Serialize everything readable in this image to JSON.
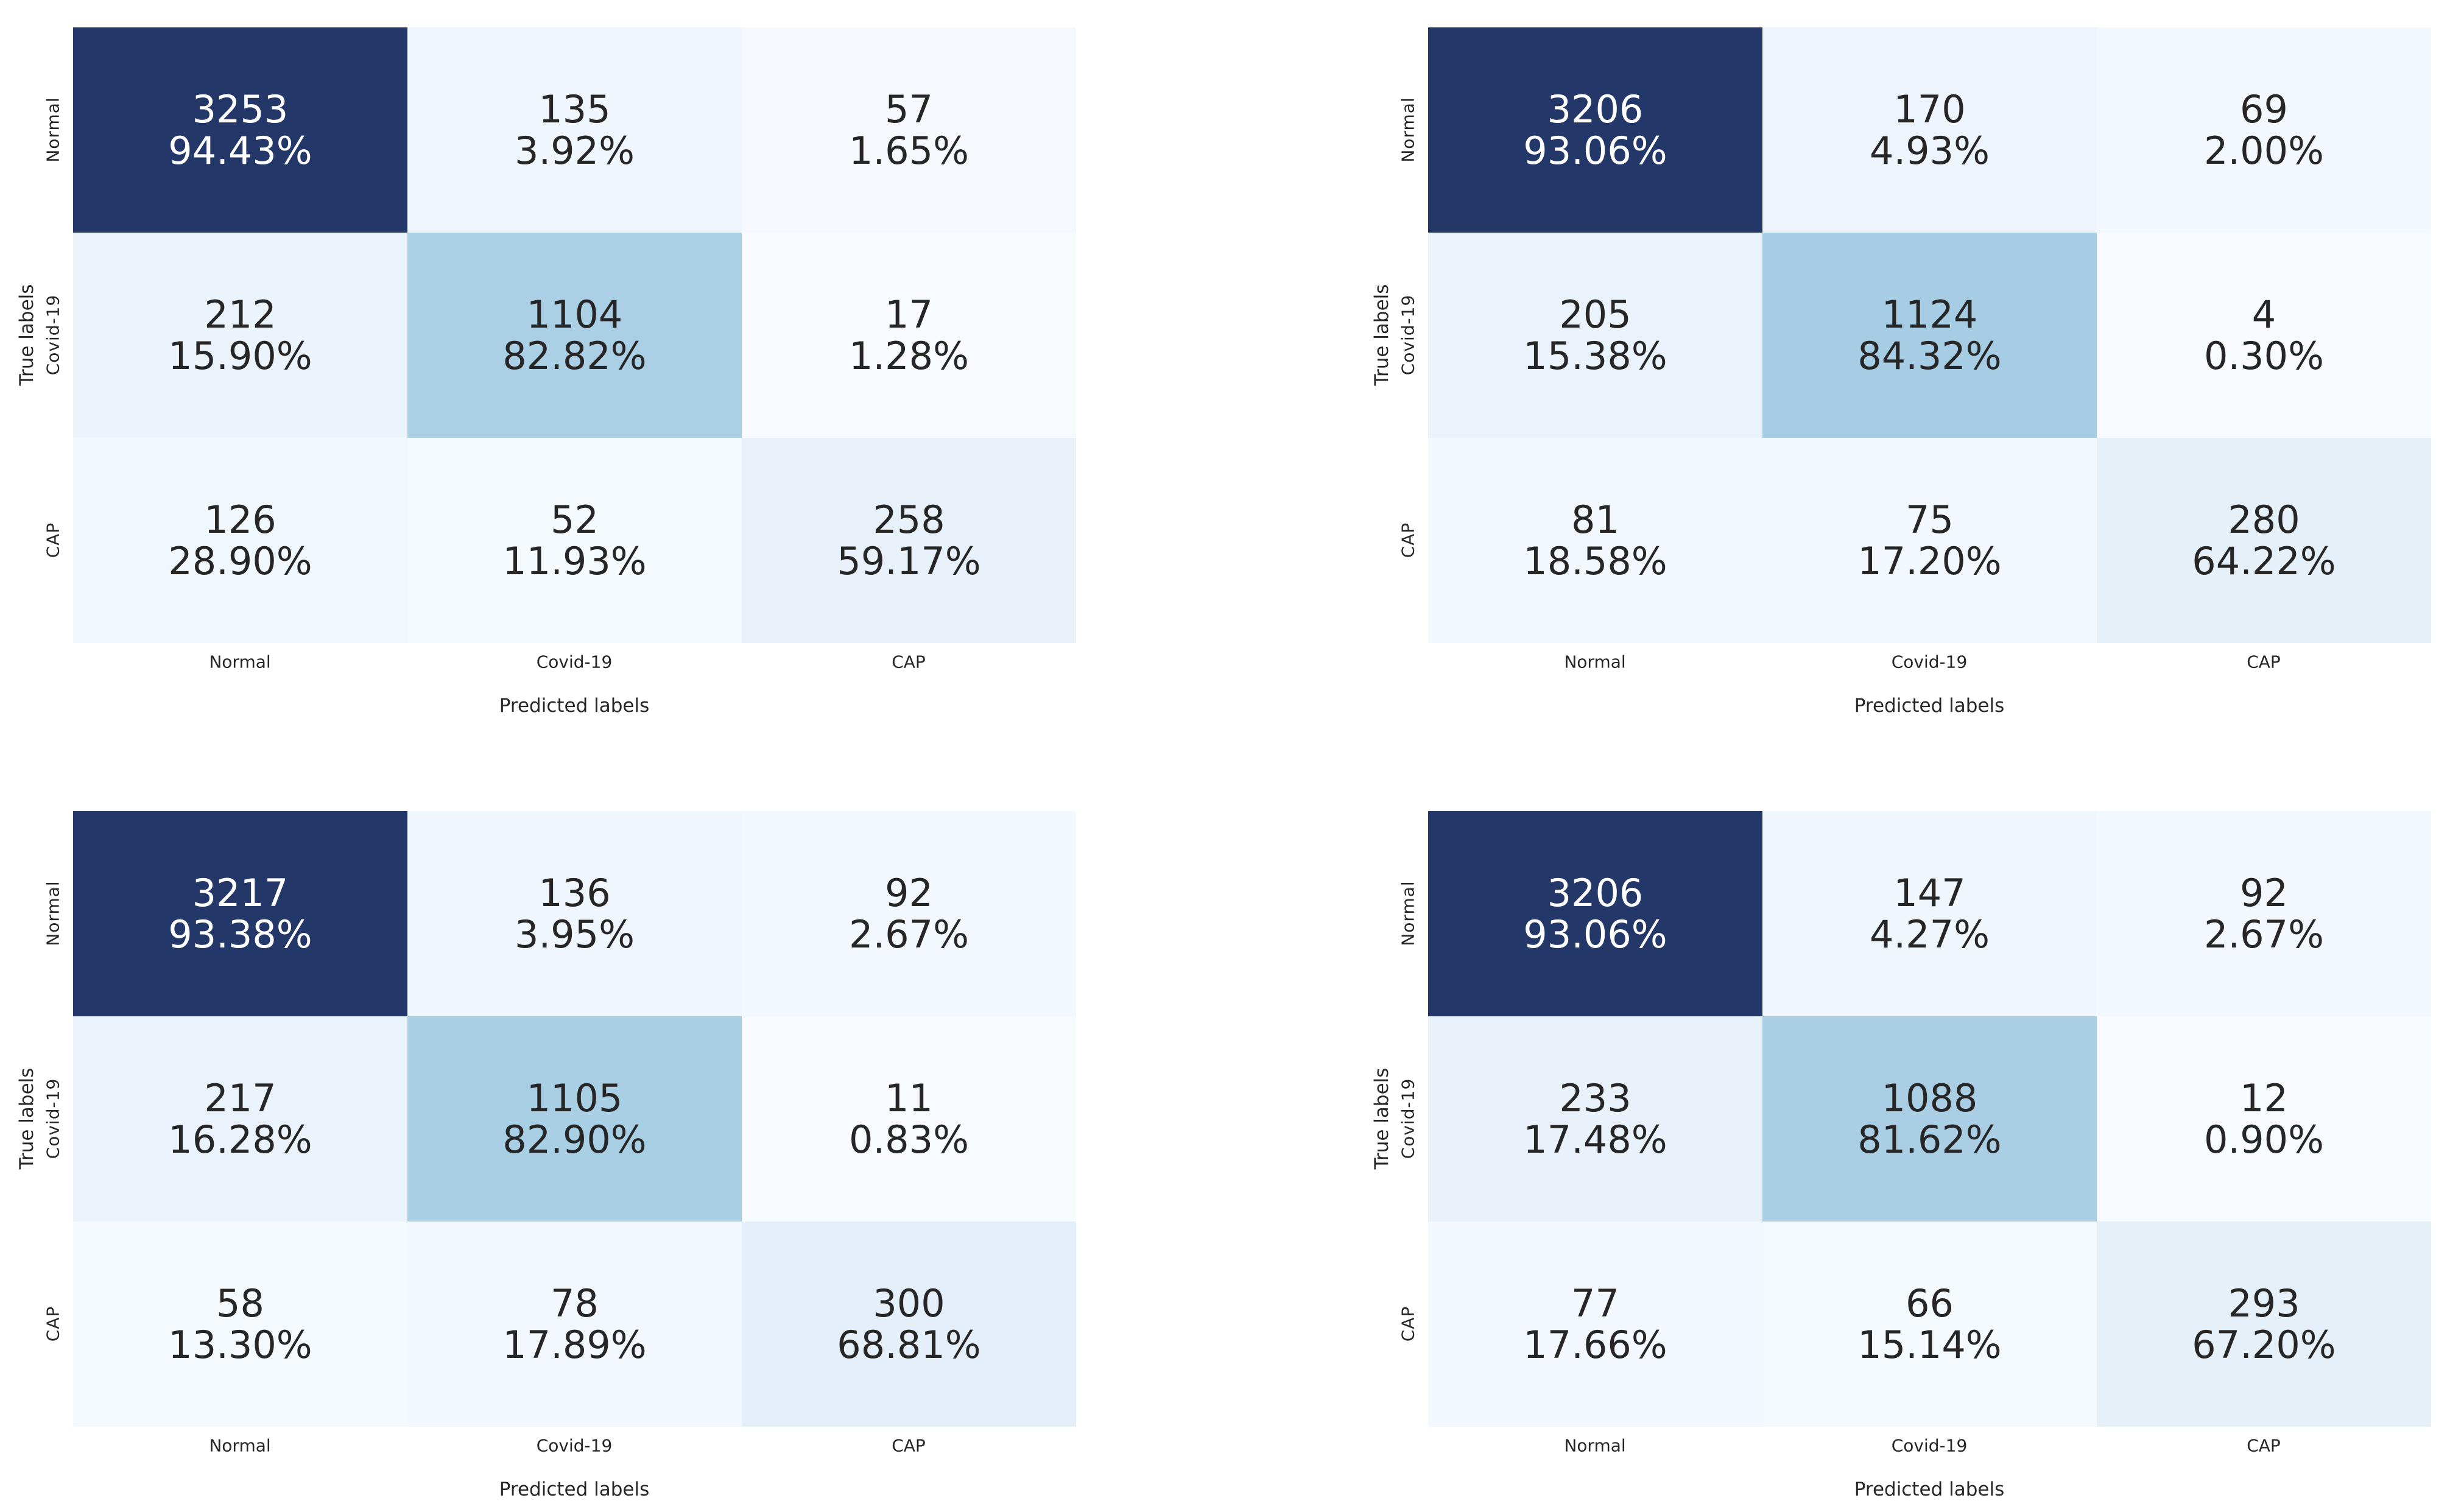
{
  "page": {
    "background_color": "#ffffff"
  },
  "colormap": {
    "name": "blues-sequential",
    "stops": [
      {
        "t": 0.0,
        "color": "#f7fbff"
      },
      {
        "t": 0.125,
        "color": "#deebf7"
      },
      {
        "t": 0.25,
        "color": "#c6dbef"
      },
      {
        "t": 0.375,
        "color": "#9ecae1"
      },
      {
        "t": 0.5,
        "color": "#6baed6"
      },
      {
        "t": 0.625,
        "color": "#4292c6"
      },
      {
        "t": 0.75,
        "color": "#2171b5"
      },
      {
        "t": 0.875,
        "color": "#08519c"
      },
      {
        "t": 1.0,
        "color": "#233768"
      }
    ],
    "white_text_threshold": 0.7,
    "dark_text_color": "#262626",
    "light_text_color": "#ffffff"
  },
  "chart_data": [
    {
      "type": "heatmap",
      "panel": "top-left",
      "xlabel": "Predicted labels",
      "ylabel": "True labels",
      "x_tick_labels": [
        "Normal",
        "Covid-19",
        "CAP"
      ],
      "y_tick_labels": [
        "Normal",
        "Covid-19",
        "CAP"
      ],
      "cells": [
        [
          {
            "count": 3253,
            "percent": "94.43%"
          },
          {
            "count": 135,
            "percent": "3.92%"
          },
          {
            "count": 57,
            "percent": "1.65%"
          }
        ],
        [
          {
            "count": 212,
            "percent": "15.90%"
          },
          {
            "count": 1104,
            "percent": "82.82%"
          },
          {
            "count": 17,
            "percent": "1.28%"
          }
        ],
        [
          {
            "count": 126,
            "percent": "28.90%"
          },
          {
            "count": 52,
            "percent": "11.93%"
          },
          {
            "count": 258,
            "percent": "59.17%"
          }
        ]
      ]
    },
    {
      "type": "heatmap",
      "panel": "top-right",
      "xlabel": "Predicted labels",
      "ylabel": "True labels",
      "x_tick_labels": [
        "Normal",
        "Covid-19",
        "CAP"
      ],
      "y_tick_labels": [
        "Normal",
        "Covid-19",
        "CAP"
      ],
      "cells": [
        [
          {
            "count": 3206,
            "percent": "93.06%"
          },
          {
            "count": 170,
            "percent": "4.93%"
          },
          {
            "count": 69,
            "percent": "2.00%"
          }
        ],
        [
          {
            "count": 205,
            "percent": "15.38%"
          },
          {
            "count": 1124,
            "percent": "84.32%"
          },
          {
            "count": 4,
            "percent": "0.30%"
          }
        ],
        [
          {
            "count": 81,
            "percent": "18.58%"
          },
          {
            "count": 75,
            "percent": "17.20%"
          },
          {
            "count": 280,
            "percent": "64.22%"
          }
        ]
      ]
    },
    {
      "type": "heatmap",
      "panel": "bottom-left",
      "xlabel": "Predicted labels",
      "ylabel": "True labels",
      "x_tick_labels": [
        "Normal",
        "Covid-19",
        "CAP"
      ],
      "y_tick_labels": [
        "Normal",
        "Covid-19",
        "CAP"
      ],
      "cells": [
        [
          {
            "count": 3217,
            "percent": "93.38%"
          },
          {
            "count": 136,
            "percent": "3.95%"
          },
          {
            "count": 92,
            "percent": "2.67%"
          }
        ],
        [
          {
            "count": 217,
            "percent": "16.28%"
          },
          {
            "count": 1105,
            "percent": "82.90%"
          },
          {
            "count": 11,
            "percent": "0.83%"
          }
        ],
        [
          {
            "count": 58,
            "percent": "13.30%"
          },
          {
            "count": 78,
            "percent": "17.89%"
          },
          {
            "count": 300,
            "percent": "68.81%"
          }
        ]
      ]
    },
    {
      "type": "heatmap",
      "panel": "bottom-right",
      "xlabel": "Predicted labels",
      "ylabel": "True labels",
      "x_tick_labels": [
        "Normal",
        "Covid-19",
        "CAP"
      ],
      "y_tick_labels": [
        "Normal",
        "Covid-19",
        "CAP"
      ],
      "cells": [
        [
          {
            "count": 3206,
            "percent": "93.06%"
          },
          {
            "count": 147,
            "percent": "4.27%"
          },
          {
            "count": 92,
            "percent": "2.67%"
          }
        ],
        [
          {
            "count": 233,
            "percent": "17.48%"
          },
          {
            "count": 1088,
            "percent": "81.62%"
          },
          {
            "count": 12,
            "percent": "0.90%"
          }
        ],
        [
          {
            "count": 77,
            "percent": "17.66%"
          },
          {
            "count": 66,
            "percent": "15.14%"
          },
          {
            "count": 293,
            "percent": "67.20%"
          }
        ]
      ]
    }
  ]
}
